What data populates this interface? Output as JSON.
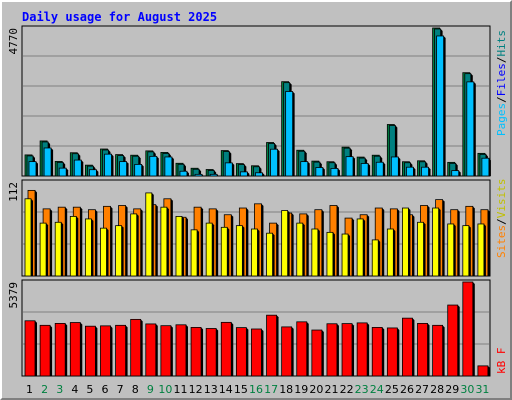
{
  "title": "Daily usage for August 2025",
  "colors": {
    "pages": "#00c0ff",
    "files": "#008080",
    "hits": "#008040",
    "sites": "#ff8000",
    "visits": "#ffff00",
    "kbf": "#ff0000",
    "weekend": "#008040",
    "weekday": "#000000"
  },
  "labels": {
    "pages": "Pages",
    "files": "Files",
    "hits": "Hits",
    "sep": "/",
    "sites": "Sites",
    "visits": "Visits",
    "kbf": "kB F"
  },
  "chart_data": {
    "type": "bar",
    "categories": [
      "1",
      "2",
      "3",
      "4",
      "5",
      "6",
      "7",
      "8",
      "9",
      "10",
      "11",
      "12",
      "13",
      "14",
      "15",
      "16",
      "17",
      "18",
      "19",
      "20",
      "21",
      "22",
      "23",
      "24",
      "25",
      "26",
      "27",
      "28",
      "29",
      "30",
      "31"
    ],
    "weekend_days": [
      "2",
      "3",
      "9",
      "10",
      "16",
      "17",
      "23",
      "24",
      "30",
      "31"
    ],
    "panels": [
      {
        "name": "hits-files-pages",
        "ymax": 4770,
        "ytick_label": "4770",
        "series": [
          {
            "name": "Hits",
            "values": [
              680,
              1130,
              470,
              750,
              350,
              870,
              690,
              670,
              810,
              760,
              410,
              250,
              210,
              820,
              400,
              330,
              1080,
              3040,
              830,
              480,
              460,
              930,
              610,
              670,
              1660,
              460,
              490,
              4770,
              440,
              3330,
              730
            ]
          },
          {
            "name": "Files",
            "values": [
              680,
              1130,
              470,
              750,
              350,
              870,
              690,
              670,
              810,
              760,
              410,
              250,
              210,
              820,
              400,
              330,
              1080,
              3040,
              830,
              480,
              460,
              930,
              610,
              670,
              1660,
              460,
              490,
              4770,
              440,
              3330,
              730
            ]
          },
          {
            "name": "Pages",
            "values": [
              560,
              1000,
              350,
              610,
              300,
              800,
              560,
              470,
              730,
              710,
              250,
              150,
              150,
              520,
              230,
              200,
              960,
              2820,
              560,
              370,
              340,
              720,
              500,
              540,
              710,
              380,
              380,
              4610,
              270,
              3130,
              670
            ]
          }
        ]
      },
      {
        "name": "visits-sites",
        "ymax": 112,
        "ytick_label": "112",
        "series": [
          {
            "name": "Visits",
            "values": [
              92,
              63,
              64,
              71,
              68,
              57,
              60,
              74,
              99,
              82,
              71,
              55,
              63,
              58,
              60,
              56,
              51,
              78,
              63,
              56,
              52,
              50,
              68,
              43,
              56,
              81,
              64,
              81,
              62,
              60,
              62
            ]
          },
          {
            "name": "Sites",
            "values": [
              102,
              80,
              82,
              82,
              79,
              83,
              84,
              80,
              85,
              92,
              70,
              82,
              80,
              73,
              81,
              86,
              63,
              75,
              74,
              79,
              84,
              69,
              73,
              81,
              80,
              73,
              84,
              91,
              79,
              83,
              79
            ]
          }
        ]
      },
      {
        "name": "kbf",
        "ymax": 5379,
        "ytick_label": "5379",
        "series": [
          {
            "name": "kB F",
            "values": [
              3160,
              2900,
              3010,
              3060,
              2850,
              2870,
              2900,
              3240,
              2980,
              2880,
              2930,
              2780,
              2720,
              3070,
              2770,
              2690,
              3480,
              2810,
              3100,
              2630,
              2990,
              3000,
              3040,
              2780,
              2750,
              3310,
              3010,
              2900,
              4060,
              5379,
              580
            ]
          }
        ]
      }
    ]
  }
}
